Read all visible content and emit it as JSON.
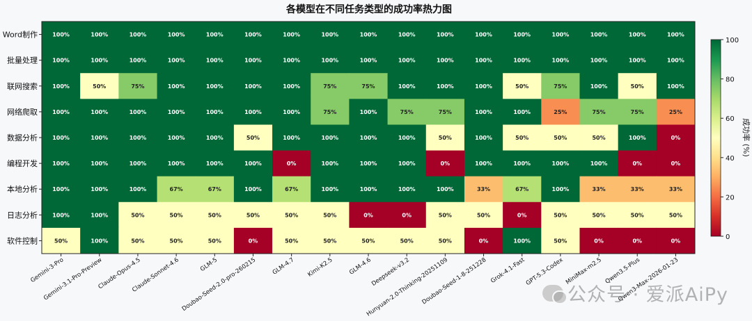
{
  "chart_data": {
    "type": "heatmap",
    "title": "各模型在不同任务类型的成功率热力图",
    "colorbar_label": "成功率 (%)",
    "colorbar_ticks": [
      0,
      20,
      40,
      60,
      80,
      100
    ],
    "vmin": 0,
    "vmax": 100,
    "colormap": "RdYlGn",
    "rows": [
      "Word制作",
      "批量处理",
      "联网搜索",
      "网络爬取",
      "数据分析",
      "编程开发",
      "本地分析",
      "日志分析",
      "软件控制"
    ],
    "columns": [
      "Gemini-3-Pro",
      "Gemini-3.1-Pro-Preview",
      "Claude-Opus-4.5",
      "Claude-Sonnet-4.6",
      "GLM-5",
      "Doubao-Seed-2.0-pro-260215",
      "GLM-4.7",
      "Kimi-K2.5",
      "GLM-4.6",
      "Deepseek-v3.2",
      "Hunyuan-2.0-Thinking-20251109",
      "Doubao-Seed-1-8-251228",
      "Grok-4.1-Fast",
      "GPT-5.3-Codex",
      "MiniMax-m2.5",
      "Qwen3.5-Plus",
      "Qwen3-Max-2026-01-23"
    ],
    "values": [
      [
        100,
        100,
        100,
        100,
        100,
        100,
        100,
        100,
        100,
        100,
        100,
        100,
        100,
        100,
        100,
        100,
        100
      ],
      [
        100,
        100,
        100,
        100,
        100,
        100,
        100,
        100,
        100,
        100,
        100,
        100,
        100,
        100,
        100,
        100,
        100
      ],
      [
        100,
        50,
        75,
        100,
        100,
        100,
        100,
        75,
        75,
        100,
        100,
        100,
        50,
        75,
        100,
        50,
        100
      ],
      [
        100,
        100,
        100,
        100,
        100,
        100,
        100,
        75,
        100,
        75,
        75,
        100,
        100,
        25,
        75,
        75,
        25
      ],
      [
        100,
        100,
        100,
        100,
        100,
        50,
        100,
        100,
        100,
        100,
        50,
        100,
        50,
        50,
        50,
        100,
        0
      ],
      [
        100,
        100,
        100,
        100,
        100,
        100,
        0,
        100,
        100,
        100,
        0,
        100,
        100,
        100,
        100,
        0,
        0
      ],
      [
        100,
        100,
        100,
        67,
        67,
        100,
        67,
        100,
        100,
        100,
        100,
        33,
        67,
        100,
        33,
        33,
        33
      ],
      [
        100,
        100,
        50,
        50,
        50,
        50,
        50,
        50,
        0,
        0,
        50,
        50,
        0,
        50,
        50,
        50,
        50
      ],
      [
        50,
        100,
        50,
        50,
        50,
        0,
        50,
        50,
        50,
        50,
        50,
        0,
        100,
        50,
        0,
        0,
        0
      ]
    ],
    "value_suffix": "%"
  },
  "watermark": "公众号 · 爱派AiPy"
}
